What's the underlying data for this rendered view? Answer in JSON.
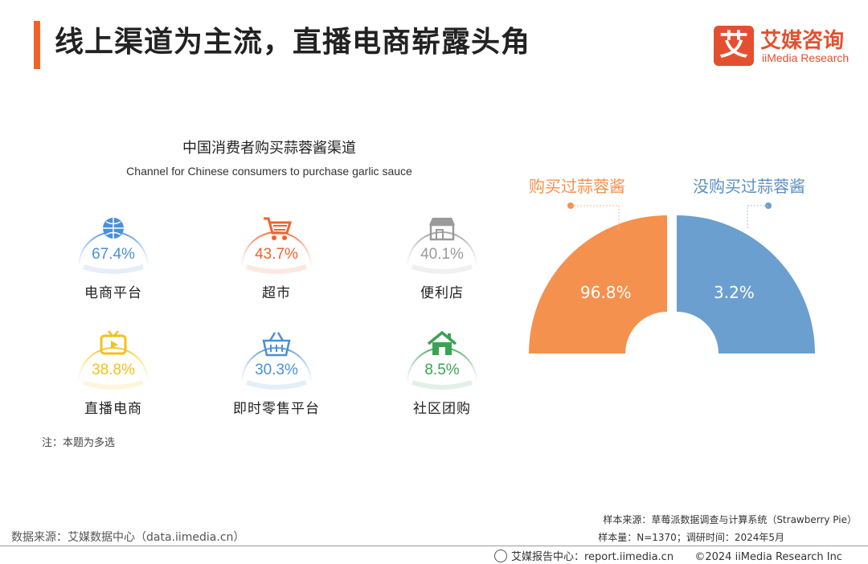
{
  "page": {
    "title": "线上渠道为主流，直播电商崭露头角"
  },
  "logo": {
    "mark": "艾",
    "name_cn": "艾媒咨询",
    "name_en": "iiMedia Research"
  },
  "chart_data": [
    {
      "type": "bar",
      "title": "中国消费者购买蒜蓉酱渠道",
      "subtitle": "Channel for Chinese consumers to purchase garlic sauce",
      "categories": [
        "电商平台",
        "超市",
        "便利店",
        "直播电商",
        "即时零售平台",
        "社区团购"
      ],
      "values": [
        67.4,
        43.7,
        40.1,
        38.8,
        30.3,
        8.5
      ],
      "value_labels": [
        "67.4%",
        "43.7%",
        "40.1%",
        "38.8%",
        "30.3%",
        "8.5%"
      ],
      "unit": "%",
      "colors": [
        "#4a90d9",
        "#f0642a",
        "#9a9a9a",
        "#f2c21b",
        "#4a90d9",
        "#3aa353"
      ],
      "icons": [
        "globe-icon",
        "shopping-cart-icon",
        "store-icon",
        "tv-play-icon",
        "basket-icon",
        "house-icon"
      ],
      "note": "注：本题为多选"
    },
    {
      "type": "pie",
      "categories": [
        "购买过蒜蓉酱",
        "没购买过蒜蓉酱"
      ],
      "values": [
        96.8,
        3.2
      ],
      "value_labels": [
        "96.8%",
        "3.2%"
      ],
      "colors": [
        "#f5914e",
        "#6a9fd0"
      ]
    }
  ],
  "source": {
    "sample_source": "样本来源：草莓派数据调查与计算系统（Strawberry Pie）",
    "sample_info": "样本量：N=1370；调研时间：2024年5月",
    "data_source": "数据来源：艾媒数据中心（data.iimedia.cn）"
  },
  "footer": {
    "report_center": "艾媒报告中心：report.iimedia.cn",
    "copyright": "©2024  iiMedia Research  Inc"
  }
}
